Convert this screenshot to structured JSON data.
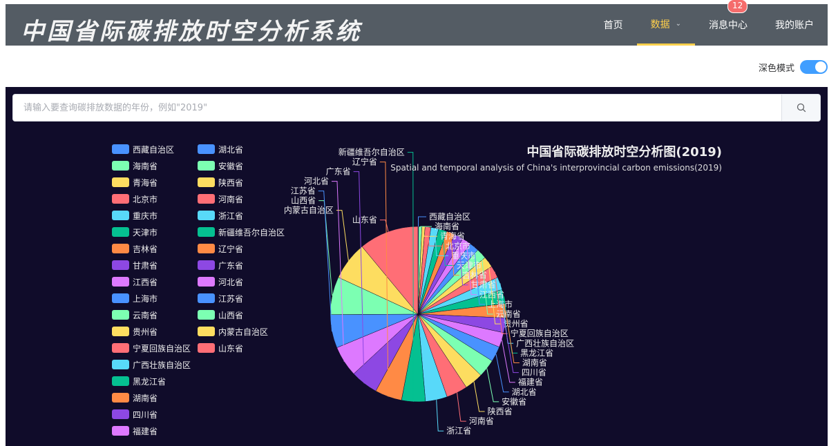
{
  "header": {
    "logo": "中国省际碳排放时空分析系统",
    "nav": [
      {
        "label": "首页"
      },
      {
        "label": "数据",
        "active": true,
        "dropdown": true
      },
      {
        "label": "消息中心",
        "badge": "12"
      },
      {
        "label": "我的账户"
      }
    ]
  },
  "dark_mode": {
    "label": "深色模式",
    "on": true
  },
  "search": {
    "placeholder": "请输入要查询碳排放数据的年份，例如\"2019\"",
    "value": "",
    "icon": "search-icon"
  },
  "chart_data": {
    "type": "pie",
    "title": "中国省际碳排放时空分析图(2019)",
    "subtitle": "Spatial and temporal analysis of China's interprovincial carbon emissions(2019)",
    "legend_position": "top-left",
    "colors": [
      "#4992ff",
      "#7cffb2",
      "#fddd60",
      "#ff6e76",
      "#58d9f9",
      "#05c091",
      "#ff8a45",
      "#8d48e3",
      "#dd79ff"
    ],
    "categories": [
      "西藏自治区",
      "海南省",
      "青海省",
      "北京市",
      "重庆市",
      "天津市",
      "吉林省",
      "甘肃省",
      "江西省",
      "上海市",
      "云南省",
      "贵州省",
      "宁夏回族自治区",
      "广西壮族自治区",
      "黑龙江省",
      "湖南省",
      "四川省",
      "福建省",
      "湖北省",
      "安徽省",
      "陕西省",
      "河南省",
      "浙江省",
      "新疆维吾尔自治区",
      "辽宁省",
      "广东省",
      "河北省",
      "江苏省",
      "山西省",
      "内蒙古自治区",
      "山东省"
    ],
    "values": [
      1,
      5,
      5,
      9,
      12,
      13,
      13,
      14,
      14,
      15,
      16,
      17,
      19,
      20,
      22,
      22,
      23,
      23,
      24,
      28,
      29,
      33,
      34,
      37,
      42,
      43,
      48,
      52,
      59,
      60,
      93
    ]
  }
}
